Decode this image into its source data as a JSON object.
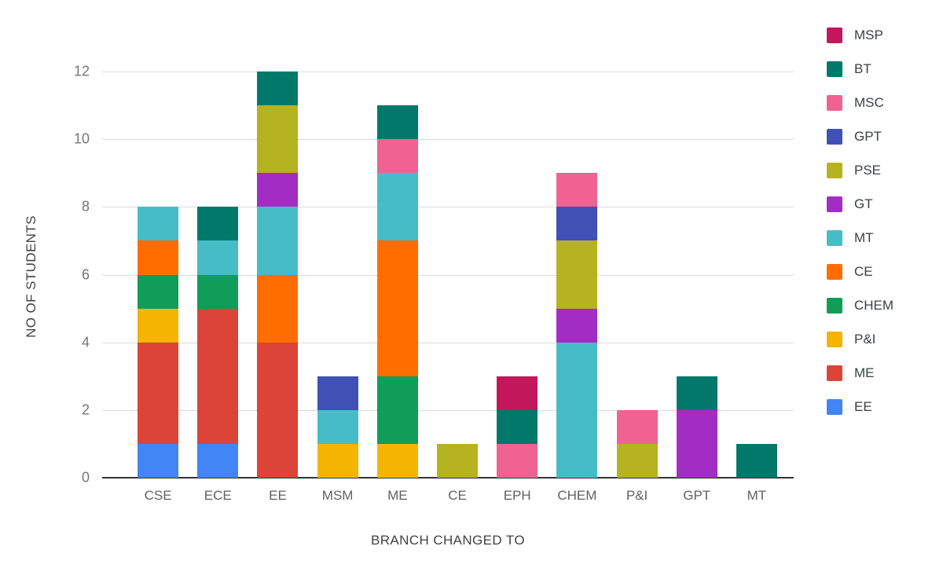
{
  "chart_data": {
    "type": "bar",
    "stacked": true,
    "title": "",
    "xlabel": "BRANCH CHANGED TO",
    "ylabel": "NO OF STUDENTS",
    "ylim": [
      0,
      12
    ],
    "yticks": [
      0,
      2,
      4,
      6,
      8,
      10,
      12
    ],
    "grid": true,
    "legend_position": "right",
    "categories": [
      "CSE",
      "ECE",
      "EE",
      "MSM",
      "ME",
      "CE",
      "EPH",
      "CHEM",
      "P&I",
      "GPT",
      "MT"
    ],
    "series": [
      {
        "name": "EE",
        "color": "#4285F4",
        "values": [
          1,
          1,
          0,
          0,
          0,
          0,
          0,
          0,
          0,
          0,
          0
        ]
      },
      {
        "name": "ME",
        "color": "#DB4437",
        "values": [
          3,
          4,
          4,
          0,
          0,
          0,
          0,
          0,
          0,
          0,
          0
        ]
      },
      {
        "name": "P&I",
        "color": "#F4B400",
        "values": [
          1,
          0,
          0,
          1,
          1,
          0,
          0,
          0,
          0,
          0,
          0
        ]
      },
      {
        "name": "CHEM",
        "color": "#0F9D58",
        "values": [
          1,
          1,
          0,
          0,
          2,
          0,
          0,
          0,
          0,
          0,
          0
        ]
      },
      {
        "name": "CE",
        "color": "#FF6D01",
        "values": [
          1,
          0,
          2,
          0,
          4,
          0,
          0,
          0,
          0,
          0,
          0
        ]
      },
      {
        "name": "MT",
        "color": "#46BDC6",
        "values": [
          1,
          1,
          2,
          1,
          2,
          0,
          0,
          4,
          0,
          0,
          0
        ]
      },
      {
        "name": "GT",
        "color": "#A32CC4",
        "values": [
          0,
          0,
          1,
          0,
          0,
          0,
          0,
          1,
          0,
          2,
          0
        ]
      },
      {
        "name": "PSE",
        "color": "#B5B320",
        "values": [
          0,
          0,
          2,
          0,
          0,
          1,
          0,
          2,
          1,
          0,
          0
        ]
      },
      {
        "name": "GPT",
        "color": "#3F51B5",
        "values": [
          0,
          0,
          0,
          1,
          0,
          0,
          0,
          1,
          0,
          0,
          0
        ]
      },
      {
        "name": "MSC",
        "color": "#F06292",
        "values": [
          0,
          0,
          0,
          0,
          1,
          0,
          1,
          1,
          1,
          0,
          0
        ]
      },
      {
        "name": "BT",
        "color": "#00796B",
        "values": [
          0,
          1,
          1,
          0,
          1,
          0,
          1,
          0,
          0,
          1,
          1
        ]
      },
      {
        "name": "MSP",
        "color": "#C2185B",
        "values": [
          0,
          0,
          0,
          0,
          0,
          0,
          1,
          0,
          0,
          0,
          0
        ]
      }
    ],
    "legend_order": [
      "MSP",
      "BT",
      "MSC",
      "GPT",
      "PSE",
      "GT",
      "MT",
      "CE",
      "CHEM",
      "P&I",
      "ME",
      "EE"
    ],
    "bar_totals": {
      "CSE": 8,
      "ECE": 8,
      "EE": 12,
      "MSM": 3,
      "ME": 11,
      "CE": 1,
      "EPH": 3,
      "CHEM": 9,
      "P&I": 2,
      "GPT": 3,
      "MT": 1
    }
  }
}
